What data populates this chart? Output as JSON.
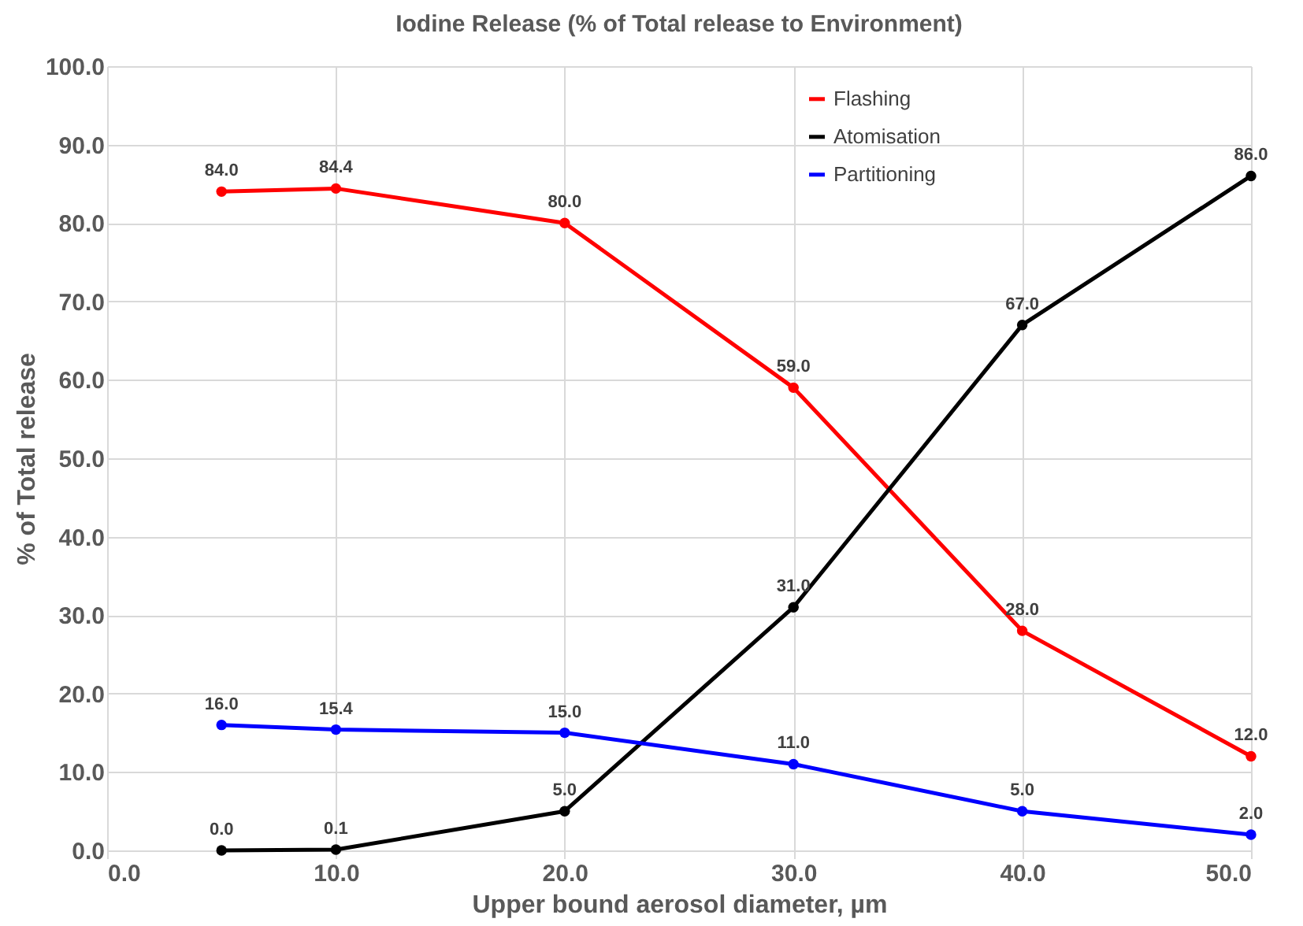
{
  "chart_data": {
    "type": "line",
    "title": "Iodine Release (% of Total release to Environment)",
    "xlabel": "Upper bound aerosol diameter, µm",
    "ylabel": "% of Total release",
    "x": [
      5,
      10,
      20,
      30,
      40,
      50
    ],
    "series": [
      {
        "name": "Flashing",
        "color": "#ff0000",
        "values": [
          84.0,
          84.4,
          80.0,
          59.0,
          28.0,
          12.0
        ],
        "value_labels": [
          "84.0",
          "84.4",
          "80.0",
          "59.0",
          "28.0",
          "12.0"
        ]
      },
      {
        "name": "Atomisation",
        "color": "#000000",
        "values": [
          0.0,
          0.1,
          5.0,
          31.0,
          67.0,
          86.0
        ],
        "value_labels": [
          "0.0",
          "0.1",
          "5.0",
          "31.0",
          "67.0",
          "86.0"
        ]
      },
      {
        "name": "Partitioning",
        "color": "#0000ff",
        "values": [
          16.0,
          15.4,
          15.0,
          11.0,
          5.0,
          2.0
        ],
        "value_labels": [
          "16.0",
          "15.4",
          "15.0",
          "11.0",
          "5.0",
          "2.0"
        ]
      }
    ],
    "xlim": [
      0,
      50
    ],
    "xticks": [
      {
        "value": 0,
        "label": "0.0"
      },
      {
        "value": 10,
        "label": "10.0"
      },
      {
        "value": 20,
        "label": "20.0"
      },
      {
        "value": 30,
        "label": "30.0"
      },
      {
        "value": 40,
        "label": "40.0"
      },
      {
        "value": 50,
        "label": "50.0"
      }
    ],
    "ylim": [
      0,
      100
    ],
    "yticks": [
      {
        "value": 0,
        "label": "0.0"
      },
      {
        "value": 10,
        "label": "10.0"
      },
      {
        "value": 20,
        "label": "20.0"
      },
      {
        "value": 30,
        "label": "30.0"
      },
      {
        "value": 40,
        "label": "40.0"
      },
      {
        "value": 50,
        "label": "50.0"
      },
      {
        "value": 60,
        "label": "60.0"
      },
      {
        "value": 70,
        "label": "70.0"
      },
      {
        "value": 80,
        "label": "80.0"
      },
      {
        "value": 90,
        "label": "90.0"
      },
      {
        "value": 100,
        "label": "100.0"
      }
    ],
    "grid": true,
    "legend": "top right",
    "marker": "circle",
    "line_style": "solid"
  }
}
